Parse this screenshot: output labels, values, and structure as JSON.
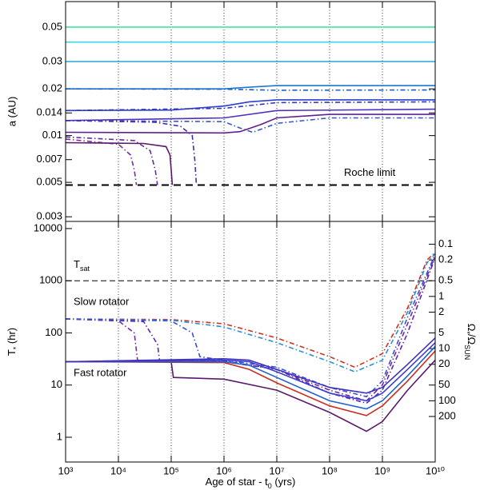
{
  "chart_data": [
    {
      "type": "line",
      "log_x": true,
      "log_y": true,
      "ylabel": "a (AU)",
      "xlim": [
        1000.0,
        10000000000.0
      ],
      "xticks": [
        1000.0,
        10000.0,
        100000.0,
        1000000.0,
        10000000.0,
        100000000.0,
        1000000000.0,
        10000000000.0
      ],
      "show_xtick_labels": false,
      "xgrid": true,
      "ylim": [
        0.0028,
        0.073
      ],
      "yticks": [
        0.003,
        0.005,
        0.007,
        0.01,
        0.014,
        0.02,
        0.03,
        0.05
      ],
      "reference_line": {
        "value": 0.0048,
        "label": "Roche limit"
      },
      "series": [
        {
          "color": "#3ee6a0",
          "dash": "solid",
          "x": [
            1000.0,
            10000000000.0
          ],
          "values": [
            0.05,
            0.05
          ]
        },
        {
          "color": "#3ad8ea",
          "dash": "solid",
          "x": [
            1000.0,
            10000000000.0
          ],
          "values": [
            0.04,
            0.04
          ]
        },
        {
          "color": "#22a8d8",
          "dash": "solid",
          "x": [
            1000.0,
            10000000000.0
          ],
          "values": [
            0.03,
            0.03
          ]
        },
        {
          "color": "#1a78d0",
          "dash": "solid",
          "x": [
            1000.0,
            1000000.0,
            3000000.0,
            10000000.0,
            10000000000.0
          ],
          "values": [
            0.02,
            0.02,
            0.0205,
            0.021,
            0.021
          ]
        },
        {
          "color": "#1a5ec8",
          "dash": "dashdot",
          "x": [
            1000.0,
            1000000.0,
            10000000.0,
            10000000000.0
          ],
          "values": [
            0.02,
            0.0199,
            0.0196,
            0.0197
          ]
        },
        {
          "color": "#2a40d0",
          "dash": "solid",
          "x": [
            1000.0,
            100000.0,
            1000000.0,
            3000000.0,
            10000000.0,
            10000000000.0
          ],
          "values": [
            0.0145,
            0.0146,
            0.0155,
            0.0165,
            0.017,
            0.017
          ]
        },
        {
          "color": "#3434c4",
          "dash": "dashdot",
          "x": [
            1000.0,
            1000000.0,
            10000000.0,
            10000000000.0
          ],
          "values": [
            0.0145,
            0.015,
            0.0163,
            0.0165
          ]
        },
        {
          "color": "#5030c0",
          "dash": "solid",
          "x": [
            1000.0,
            1000000.0,
            10000000.0,
            10000000000.0
          ],
          "values": [
            0.0125,
            0.013,
            0.0145,
            0.0148
          ]
        },
        {
          "color": "#3058c8",
          "dash": "dashdot",
          "x": [
            1000.0,
            1000000.0,
            2000000.0,
            3500000.0,
            10000000.0,
            100000000.0,
            10000000000.0
          ],
          "values": [
            0.0125,
            0.0123,
            0.0112,
            0.0105,
            0.012,
            0.013,
            0.013
          ]
        },
        {
          "color": "#602090",
          "dash": "solid",
          "x": [
            1000.0,
            1000000.0,
            2000000.0,
            5000000.0,
            10000000.0,
            100000000.0,
            10000000000.0
          ],
          "values": [
            0.0105,
            0.0104,
            0.0106,
            0.0118,
            0.013,
            0.0137,
            0.0137
          ]
        },
        {
          "color": "#4a2aa8",
          "dash": "dashdot",
          "x": [
            1000.0,
            50000.0,
            150000.0,
            250000.0,
            280000.0,
            300000.0
          ],
          "values": [
            0.0125,
            0.0122,
            0.0115,
            0.01,
            0.007,
            0.0048
          ]
        },
        {
          "color": "#6a2a9a",
          "dash": "dashdot",
          "x": [
            1000.0,
            20000.0,
            40000.0,
            50000.0,
            55000.0
          ],
          "values": [
            0.0098,
            0.0093,
            0.008,
            0.006,
            0.0048
          ]
        },
        {
          "color": "#7a2a9a",
          "dash": "dashdot",
          "x": [
            1000.0,
            10000.0,
            17000.0,
            20000.0,
            22000.0
          ],
          "values": [
            0.0095,
            0.0088,
            0.0075,
            0.006,
            0.0048
          ]
        },
        {
          "color": "#5a1a6a",
          "dash": "solid",
          "x": [
            1000.0,
            30000.0,
            80000.0,
            95000.0,
            100000.0,
            105000.0
          ],
          "values": [
            0.009,
            0.0089,
            0.0085,
            0.0075,
            0.006,
            0.0048
          ]
        }
      ]
    },
    {
      "type": "line",
      "log_x": true,
      "log_y": true,
      "xlabel": [
        {
          "t": "Age of star - t"
        },
        {
          "t": "0",
          "sub": true
        },
        {
          "t": " (yrs)"
        }
      ],
      "ylabel": [
        {
          "t": "T"
        },
        {
          "t": "*",
          "sub": true
        },
        {
          "t": " (hr)"
        }
      ],
      "y2label": [
        {
          "t": "Ω"
        },
        {
          "t": "*",
          "sub": true
        },
        {
          "t": "/Ω"
        },
        {
          "t": "SUN",
          "sub": true
        }
      ],
      "xlim": [
        1000.0,
        10000000000.0
      ],
      "xticks": [
        {
          "value": 1000.0,
          "label": "10³"
        },
        {
          "value": 10000.0,
          "label": "10⁴"
        },
        {
          "value": 100000.0,
          "label": "10⁵"
        },
        {
          "value": 1000000.0,
          "label": "10⁶"
        },
        {
          "value": 10000000.0,
          "label": "10⁷"
        },
        {
          "value": 100000000.0,
          "label": "10⁸"
        },
        {
          "value": 1000000000.0,
          "label": "10⁹"
        },
        {
          "value": 10000000000.0,
          "label": "10¹⁰"
        }
      ],
      "show_xtick_labels": true,
      "xgrid": true,
      "ylim": [
        0.335,
        13700
      ],
      "yticks": [
        1,
        10,
        100,
        1000,
        10000
      ],
      "y2lim": [
        1493,
        0.0365
      ],
      "y2ticks": [
        0.1,
        0.2,
        0.5,
        1,
        2,
        5,
        10,
        20,
        50,
        100,
        200
      ],
      "reference_line": {
        "value": 1000,
        "label": [
          {
            "t": "T"
          },
          {
            "t": "sat",
            "sub": true
          }
        ]
      },
      "annotations": [
        "Slow rotator",
        "Fast rotator"
      ],
      "series": [
        {
          "color": "#d03020",
          "dash": "dashdot",
          "x": [
            1000.0,
            100000.0,
            1000000.0,
            10000000.0,
            100000000.0,
            300000000.0,
            1000000000.0,
            3000000000.0,
            7000000000.0,
            10000000000.0
          ],
          "values": [
            185,
            180,
            150,
            80,
            35,
            22,
            40,
            300,
            2500,
            3500
          ]
        },
        {
          "color": "#2a90d8",
          "dash": "dashdot",
          "x": [
            1000.0,
            100000.0,
            1000000.0,
            10000000.0,
            100000000.0,
            300000000.0,
            1000000000.0,
            3000000000.0,
            7000000000.0,
            10000000000.0
          ],
          "values": [
            185,
            175,
            130,
            65,
            28,
            18,
            30,
            250,
            2200,
            3300
          ]
        },
        {
          "color": "#7a2a9a",
          "dash": "dashdot",
          "x": [
            1000.0,
            10000.0,
            20000.0,
            23000.0,
            100000.0,
            1000000.0,
            10000000.0,
            100000000.0,
            500000000.0,
            1000000000.0,
            3000000000.0,
            10000000000.0
          ],
          "values": [
            185,
            170,
            100,
            30,
            29,
            28,
            20,
            8,
            5,
            10,
            150,
            3000
          ]
        },
        {
          "color": "#5a2ab0",
          "dash": "dashdot",
          "x": [
            1000.0,
            30000.0,
            55000.0,
            60000.0,
            1000000.0,
            10000000.0,
            100000000.0,
            500000000.0,
            1000000000.0,
            3000000000.0,
            10000000000.0
          ],
          "values": [
            185,
            165,
            60,
            30,
            29,
            20,
            7,
            4.5,
            8,
            100,
            2800
          ]
        },
        {
          "color": "#3a50d0",
          "dash": "dashdot",
          "x": [
            1000.0,
            100000.0,
            250000.0,
            350000.0,
            1000000.0,
            10000000.0,
            100000000.0,
            500000000.0,
            1000000000.0,
            3000000000.0,
            10000000000.0
          ],
          "values": [
            185,
            170,
            100,
            35,
            30,
            22,
            9,
            6,
            12,
            200,
            3200
          ]
        },
        {
          "color": "#5a1a6a",
          "dash": "solid",
          "x": [
            1000.0,
            100000.0,
            110000.0,
            1000000.0,
            10000000.0,
            100000000.0,
            500000000.0,
            1000000000.0,
            3000000000.0,
            10000000000.0
          ],
          "values": [
            28,
            28,
            14,
            13,
            8,
            3,
            1.3,
            2,
            8,
            30
          ]
        },
        {
          "color": "#c83020",
          "dash": "solid",
          "x": [
            1000.0,
            1000000.0,
            3000000.0,
            10000000.0,
            100000000.0,
            500000000.0,
            1000000000.0,
            3000000000.0,
            10000000000.0
          ],
          "values": [
            28,
            27,
            20,
            11,
            4,
            2.6,
            4,
            12,
            45
          ]
        },
        {
          "color": "#2060d0",
          "dash": "solid",
          "x": [
            1000.0,
            1000000.0,
            3000000.0,
            10000000.0,
            100000000.0,
            500000000.0,
            1000000000.0,
            3000000000.0,
            10000000000.0
          ],
          "values": [
            28,
            28,
            24,
            14,
            5,
            3.5,
            5,
            15,
            55
          ]
        },
        {
          "color": "#3a40d0",
          "dash": "solid",
          "x": [
            1000.0,
            1000000.0,
            3000000.0,
            10000000.0,
            100000000.0,
            500000000.0,
            1000000000.0,
            3000000000.0,
            10000000000.0
          ],
          "values": [
            28,
            30,
            28,
            18,
            7,
            5,
            7,
            20,
            65
          ]
        },
        {
          "color": "#4030c0",
          "dash": "solid",
          "x": [
            1000.0,
            1000000.0,
            3000000.0,
            10000000.0,
            100000000.0,
            500000000.0,
            1000000000.0,
            3000000000.0,
            10000000000.0
          ],
          "values": [
            28,
            32,
            30,
            20,
            9,
            7,
            9,
            25,
            80
          ]
        }
      ]
    }
  ]
}
